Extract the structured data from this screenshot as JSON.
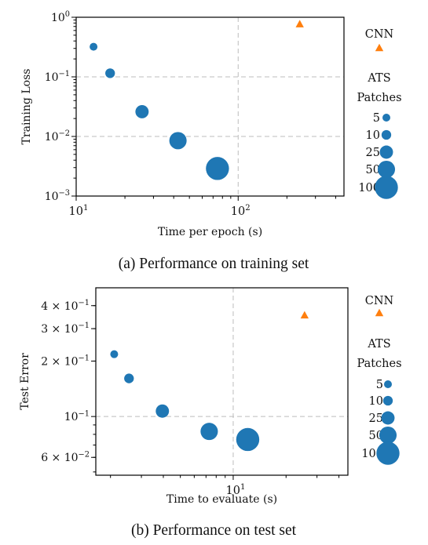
{
  "chart_data": [
    {
      "type": "scatter",
      "xlabel": "Time per epoch (s)",
      "ylabel": "Training Loss",
      "caption": "(a) Performance on training set",
      "x_scale": "log",
      "y_scale": "log",
      "xlim": [
        10,
        450
      ],
      "ylim": [
        0.001,
        1
      ],
      "x_ticks": [
        {
          "value": 10,
          "mant": "10",
          "exp": "1"
        },
        {
          "value": 100,
          "mant": "10",
          "exp": "2"
        }
      ],
      "y_ticks": [
        {
          "value": 1,
          "mant": "10",
          "exp": "0"
        },
        {
          "value": 0.1,
          "mant": "10",
          "exp": "−1"
        },
        {
          "value": 0.01,
          "mant": "10",
          "exp": "−2"
        },
        {
          "value": 0.001,
          "mant": "10",
          "exp": "−3"
        }
      ],
      "grid": "dashed at major ticks",
      "series": [
        {
          "name": "ATS",
          "marker": "circle",
          "color": "#1f77b4",
          "points": [
            {
              "x": 12.8,
              "y": 0.32,
              "patches": 5
            },
            {
              "x": 16.2,
              "y": 0.115,
              "patches": 10
            },
            {
              "x": 25.5,
              "y": 0.026,
              "patches": 25
            },
            {
              "x": 42.5,
              "y": 0.0085,
              "patches": 50
            },
            {
              "x": 74.5,
              "y": 0.0029,
              "patches": 100
            }
          ]
        },
        {
          "name": "CNN",
          "marker": "triangle",
          "color": "#ff7f0e",
          "points": [
            {
              "x": 240,
              "y": 0.77
            }
          ]
        }
      ],
      "legend": {
        "placement": "right",
        "cnn_label": "CNN",
        "ats_title": [
          "ATS",
          "Patches"
        ],
        "sizes": [
          "5",
          "10",
          "25",
          "50",
          "100"
        ]
      }
    },
    {
      "type": "scatter",
      "xlabel": "Time to evaluate (s)",
      "ylabel": "Test Error",
      "caption": "(b) Performance on test set",
      "x_scale": "log",
      "y_scale": "log",
      "xlim": [
        1.65,
        45
      ],
      "ylim": [
        0.048,
        0.5
      ],
      "x_ticks": [
        {
          "value": 10,
          "mant": "10",
          "exp": "1"
        }
      ],
      "y_ticks": [
        {
          "value": 0.4,
          "mant": "4 × 10",
          "exp": "−1"
        },
        {
          "value": 0.3,
          "mant": "3 × 10",
          "exp": "−1"
        },
        {
          "value": 0.2,
          "mant": "2 × 10",
          "exp": "−1"
        },
        {
          "value": 0.1,
          "mant": "10",
          "exp": "−1"
        },
        {
          "value": 0.06,
          "mant": "6 × 10",
          "exp": "−2"
        }
      ],
      "grid": "dashed at major ticks",
      "series": [
        {
          "name": "ATS",
          "marker": "circle",
          "color": "#1f77b4",
          "points": [
            {
              "x": 2.1,
              "y": 0.218,
              "patches": 5
            },
            {
              "x": 2.55,
              "y": 0.161,
              "patches": 10
            },
            {
              "x": 3.95,
              "y": 0.107,
              "patches": 25
            },
            {
              "x": 7.3,
              "y": 0.083,
              "patches": 50
            },
            {
              "x": 12.1,
              "y": 0.075,
              "patches": 100
            }
          ]
        },
        {
          "name": "CNN",
          "marker": "triangle",
          "color": "#ff7f0e",
          "points": [
            {
              "x": 25.5,
              "y": 0.355
            }
          ]
        }
      ],
      "legend": {
        "placement": "right",
        "cnn_label": "CNN",
        "ats_title": [
          "ATS",
          "Patches"
        ],
        "sizes": [
          "5",
          "10",
          "25",
          "50",
          "100"
        ]
      }
    }
  ]
}
